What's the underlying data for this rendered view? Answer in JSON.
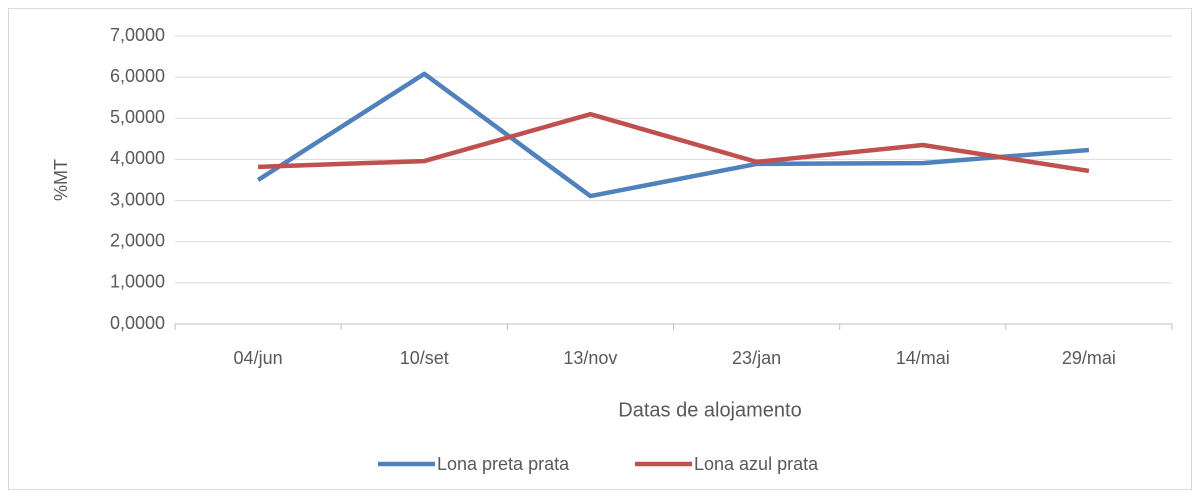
{
  "chart_data": {
    "type": "line",
    "x_label": "Datas de alojamento",
    "y_label": "%MT",
    "categories": [
      "04/jun",
      "10/set",
      "13/nov",
      "23/jan",
      "14/mai",
      "29/mai"
    ],
    "series": [
      {
        "name": "Lona preta prata",
        "color": "#4f81bd",
        "values": [
          3.5,
          6.08,
          3.11,
          3.89,
          3.91,
          4.23
        ]
      },
      {
        "name": "Lona azul prata",
        "color": "#c0504d",
        "values": [
          3.82,
          3.96,
          5.1,
          3.94,
          4.35,
          3.72
        ]
      }
    ],
    "ylim": [
      0,
      7
    ],
    "yticks": [
      {
        "value": 0,
        "label": "0,0000"
      },
      {
        "value": 1,
        "label": "1,0000"
      },
      {
        "value": 2,
        "label": "2,0000"
      },
      {
        "value": 3,
        "label": "3,0000"
      },
      {
        "value": 4,
        "label": "4,0000"
      },
      {
        "value": 5,
        "label": "5,0000"
      },
      {
        "value": 6,
        "label": "6,0000"
      },
      {
        "value": 7,
        "label": "7,0000"
      }
    ],
    "grid": true,
    "legend": "bottom"
  }
}
